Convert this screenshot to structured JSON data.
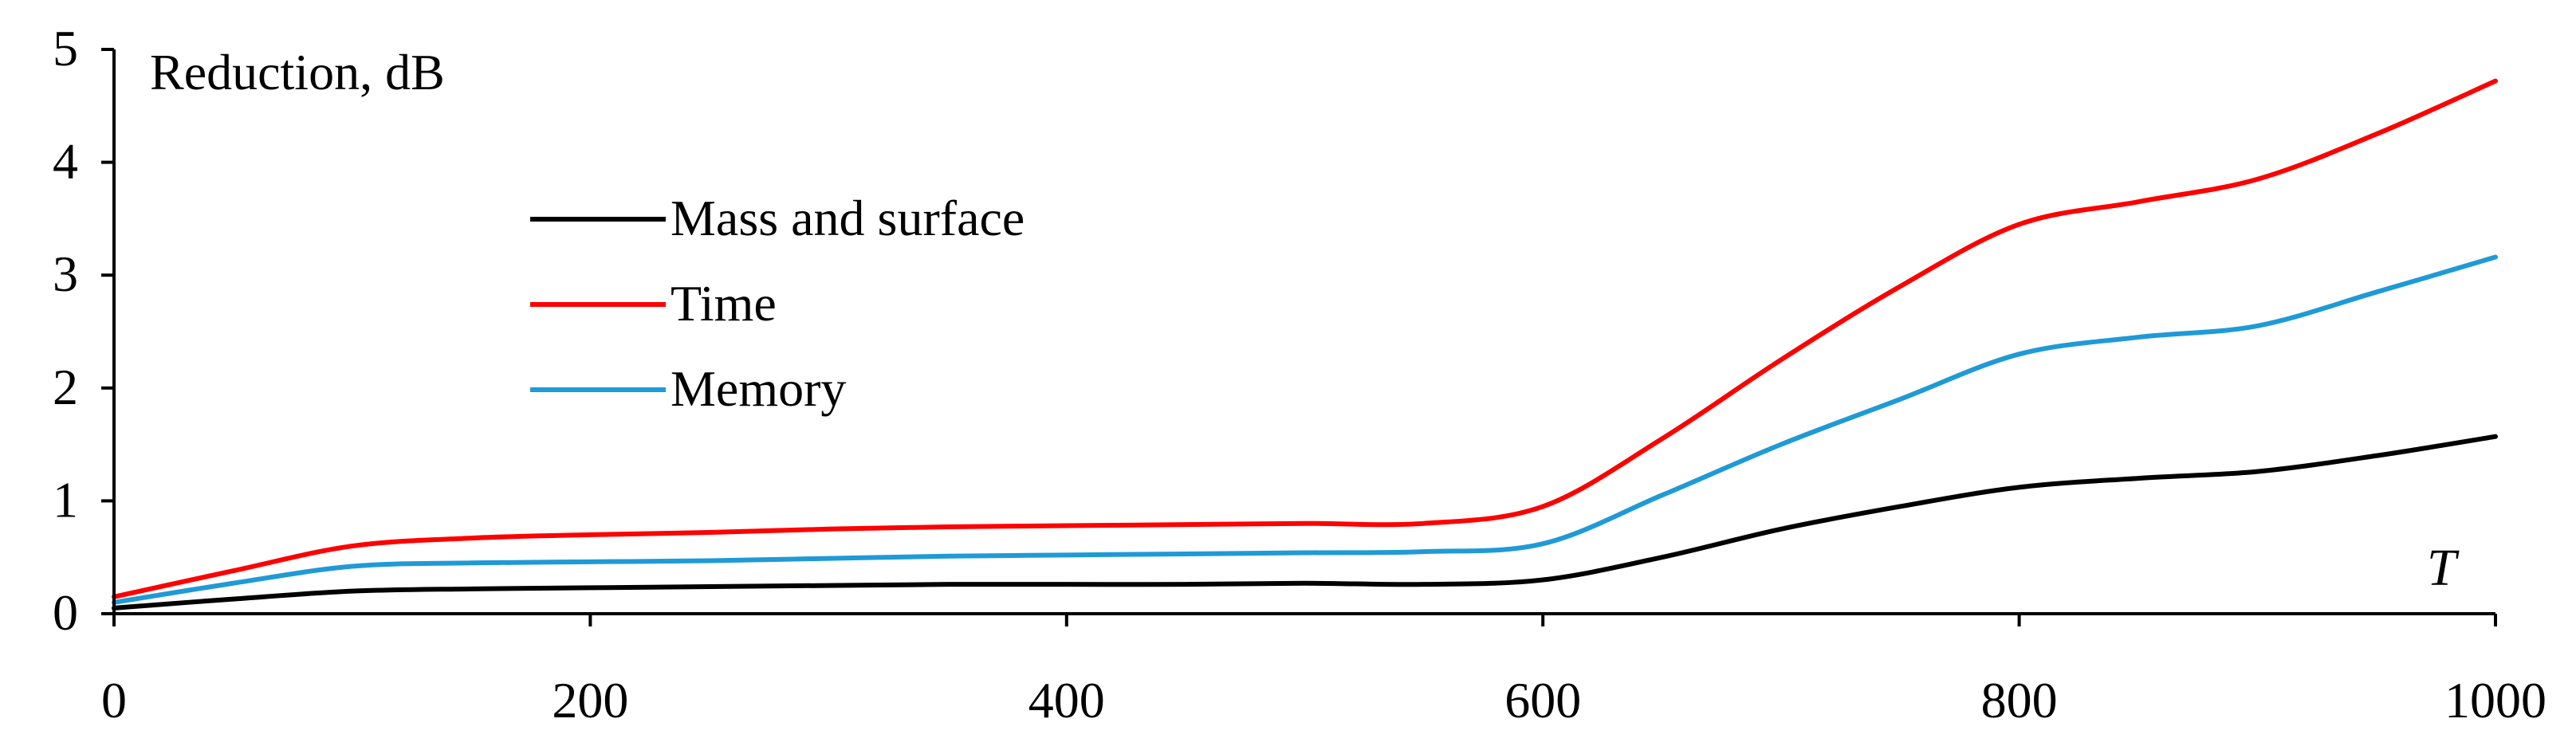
{
  "chart_data": {
    "type": "line",
    "title": "",
    "ylabel": "Reduction, dB",
    "xlabel": "T",
    "xlim": [
      0,
      1000
    ],
    "ylim": [
      0,
      5
    ],
    "xticks": [
      0,
      200,
      400,
      600,
      800,
      1000
    ],
    "yticks": [
      0,
      1,
      2,
      3,
      4,
      5
    ],
    "grid": false,
    "legend_position": "upper-left",
    "x": [
      0,
      50,
      100,
      150,
      200,
      250,
      300,
      350,
      400,
      450,
      500,
      550,
      600,
      650,
      700,
      750,
      800,
      850,
      900,
      950,
      1000
    ],
    "series": [
      {
        "name": "Mass and surface",
        "color": "#000000",
        "values": [
          0.05,
          0.13,
          0.2,
          0.22,
          0.23,
          0.24,
          0.25,
          0.26,
          0.26,
          0.26,
          0.27,
          0.26,
          0.3,
          0.5,
          0.75,
          0.95,
          1.12,
          1.2,
          1.26,
          1.4,
          1.57
        ]
      },
      {
        "name": "Time",
        "color": "#ff0000",
        "values": [
          0.15,
          0.38,
          0.6,
          0.67,
          0.7,
          0.72,
          0.75,
          0.77,
          0.78,
          0.79,
          0.8,
          0.8,
          0.95,
          1.55,
          2.25,
          2.9,
          3.45,
          3.65,
          3.85,
          4.25,
          4.72
        ]
      },
      {
        "name": "Memory",
        "color": "#1f9ad6",
        "values": [
          0.1,
          0.27,
          0.42,
          0.45,
          0.46,
          0.47,
          0.49,
          0.51,
          0.52,
          0.53,
          0.54,
          0.55,
          0.62,
          1.05,
          1.5,
          1.9,
          2.3,
          2.45,
          2.55,
          2.85,
          3.16
        ]
      }
    ]
  }
}
